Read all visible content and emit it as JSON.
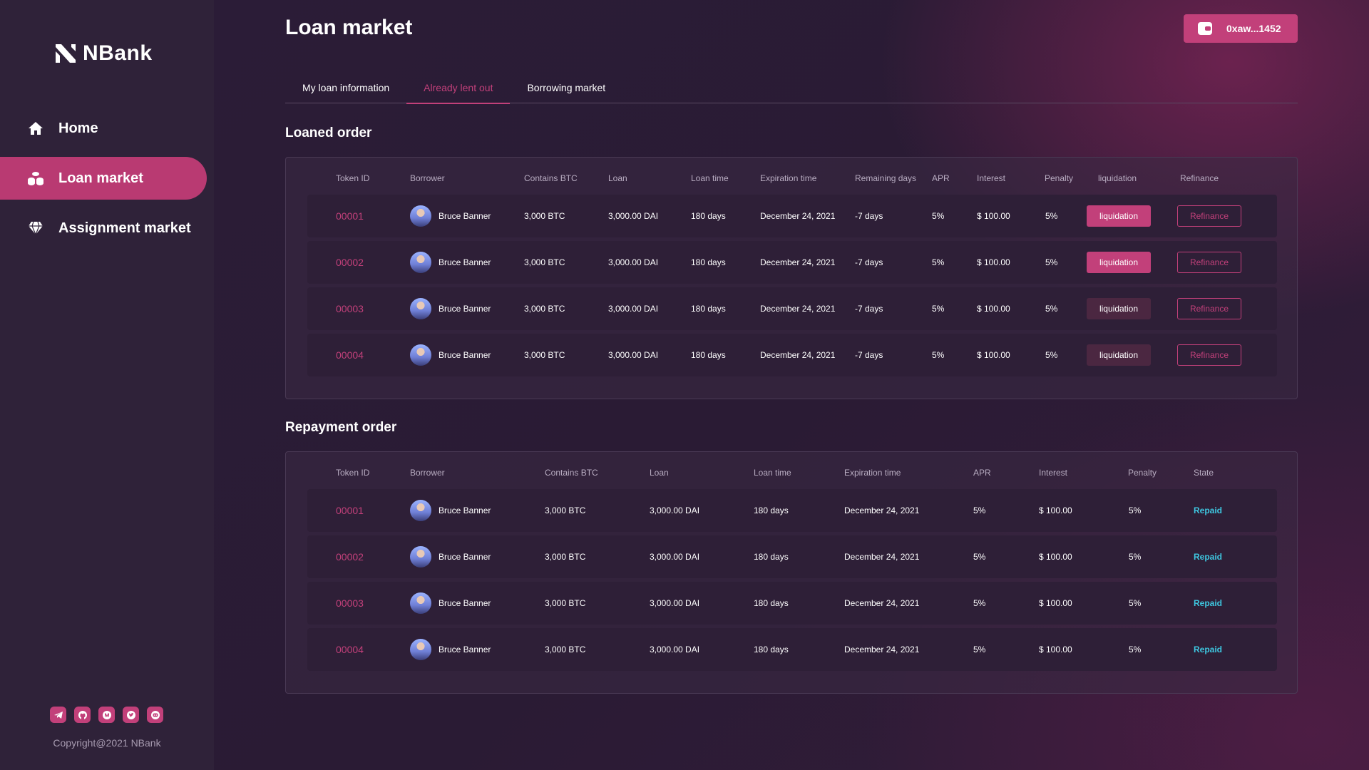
{
  "brand": {
    "name": "NBank"
  },
  "sidebar": {
    "items": [
      {
        "label": "Home",
        "icon": "home-icon",
        "active": false
      },
      {
        "label": "Loan market",
        "icon": "coins-icon",
        "active": true
      },
      {
        "label": "Assignment market",
        "icon": "diamond-icon",
        "active": false
      }
    ],
    "socials": [
      "telegram-icon",
      "github-icon",
      "medium-icon",
      "twitter-icon",
      "discord-icon"
    ],
    "copyright": "Copyright@2021 NBank"
  },
  "header": {
    "title": "Loan market",
    "wallet_address": "0xaw...1452"
  },
  "tabs": [
    {
      "label": "My loan information",
      "active": false
    },
    {
      "label": "Already lent out",
      "active": true
    },
    {
      "label": "Borrowing market",
      "active": false
    }
  ],
  "loaned": {
    "title": "Loaned order",
    "columns": [
      "Token ID",
      "Borrower",
      "Contains BTC",
      "Loan",
      "Loan time",
      "Expiration time",
      "Remaining days",
      "APR",
      "Interest",
      "Penalty",
      "liquidation",
      "Refinance"
    ],
    "rows": [
      {
        "token_id": "00001",
        "borrower": "Bruce Banner",
        "contains_btc": "3,000 BTC",
        "loan": "3,000.00 DAI",
        "loan_time": "180 days",
        "expiration": "December 24, 2021",
        "remaining": "-7 days",
        "apr": "5%",
        "interest": "$ 100.00",
        "penalty": "5%",
        "liquidation_label": "liquidation",
        "liquidation_enabled": true,
        "refinance_label": "Refinance"
      },
      {
        "token_id": "00002",
        "borrower": "Bruce Banner",
        "contains_btc": "3,000 BTC",
        "loan": "3,000.00 DAI",
        "loan_time": "180 days",
        "expiration": "December 24, 2021",
        "remaining": "-7 days",
        "apr": "5%",
        "interest": "$ 100.00",
        "penalty": "5%",
        "liquidation_label": "liquidation",
        "liquidation_enabled": true,
        "refinance_label": "Refinance"
      },
      {
        "token_id": "00003",
        "borrower": "Bruce Banner",
        "contains_btc": "3,000 BTC",
        "loan": "3,000.00 DAI",
        "loan_time": "180 days",
        "expiration": "December 24, 2021",
        "remaining": "-7 days",
        "apr": "5%",
        "interest": "$ 100.00",
        "penalty": "5%",
        "liquidation_label": "liquidation",
        "liquidation_enabled": false,
        "refinance_label": "Refinance"
      },
      {
        "token_id": "00004",
        "borrower": "Bruce Banner",
        "contains_btc": "3,000 BTC",
        "loan": "3,000.00 DAI",
        "loan_time": "180 days",
        "expiration": "December 24, 2021",
        "remaining": "-7 days",
        "apr": "5%",
        "interest": "$ 100.00",
        "penalty": "5%",
        "liquidation_label": "liquidation",
        "liquidation_enabled": false,
        "refinance_label": "Refinance"
      }
    ]
  },
  "repayment": {
    "title": "Repayment order",
    "columns": [
      "Token ID",
      "Borrower",
      "Contains BTC",
      "Loan",
      "Loan time",
      "Expiration time",
      "APR",
      "Interest",
      "Penalty",
      "State"
    ],
    "rows": [
      {
        "token_id": "00001",
        "borrower": "Bruce Banner",
        "contains_btc": "3,000 BTC",
        "loan": "3,000.00 DAI",
        "loan_time": "180 days",
        "expiration": "December 24, 2021",
        "apr": "5%",
        "interest": "$ 100.00",
        "penalty": "5%",
        "state": "Repaid"
      },
      {
        "token_id": "00002",
        "borrower": "Bruce Banner",
        "contains_btc": "3,000 BTC",
        "loan": "3,000.00 DAI",
        "loan_time": "180 days",
        "expiration": "December 24, 2021",
        "apr": "5%",
        "interest": "$ 100.00",
        "penalty": "5%",
        "state": "Repaid"
      },
      {
        "token_id": "00003",
        "borrower": "Bruce Banner",
        "contains_btc": "3,000 BTC",
        "loan": "3,000.00 DAI",
        "loan_time": "180 days",
        "expiration": "December 24, 2021",
        "apr": "5%",
        "interest": "$ 100.00",
        "penalty": "5%",
        "state": "Repaid"
      },
      {
        "token_id": "00004",
        "borrower": "Bruce Banner",
        "contains_btc": "3,000 BTC",
        "loan": "3,000.00 DAI",
        "loan_time": "180 days",
        "expiration": "December 24, 2021",
        "apr": "5%",
        "interest": "$ 100.00",
        "penalty": "5%",
        "state": "Repaid"
      }
    ]
  },
  "colors": {
    "accent": "#c2407a",
    "sidebar_bg": "#2f2239",
    "page_bg": "#2a1d35",
    "repaid": "#3ec7e0"
  }
}
